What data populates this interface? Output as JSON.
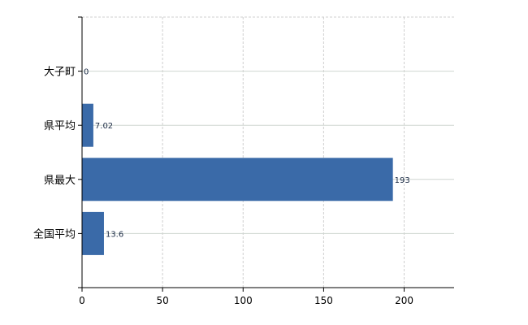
{
  "chart_data": {
    "type": "bar",
    "orientation": "horizontal",
    "categories": [
      "大子町",
      "県平均",
      "県最大",
      "全国平均"
    ],
    "values": [
      0,
      7.02,
      193,
      13.6
    ],
    "data_labels": [
      "0",
      "7.02",
      "193",
      "13.6"
    ],
    "xticks": [
      "0",
      "50",
      "100",
      "150",
      "200"
    ],
    "xlim": [
      0,
      231
    ],
    "grid": true,
    "bar_color": "#3a6aa8",
    "title": "",
    "xlabel": "",
    "ylabel": ""
  }
}
